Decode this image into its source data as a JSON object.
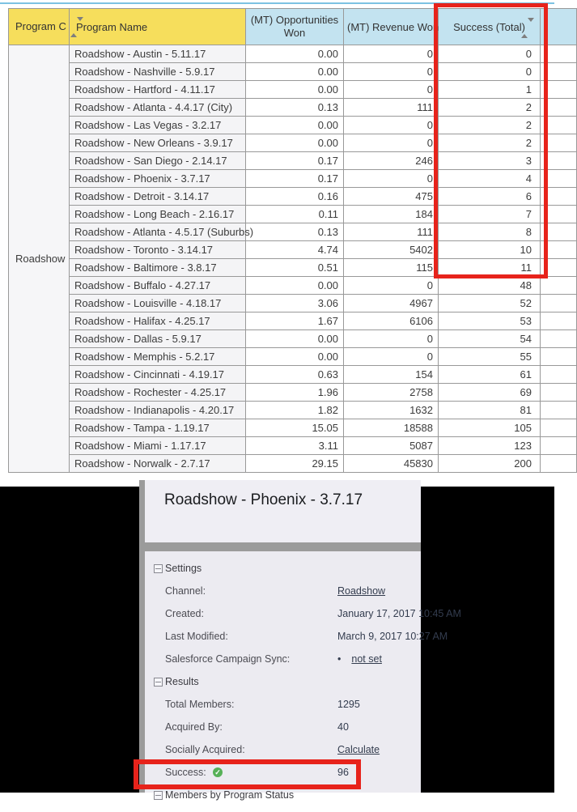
{
  "colors": {
    "highlight_red": "#e7231b",
    "header_yellow": "#f6de5c",
    "header_blue": "#c3e3f0",
    "success_green": "#57b158",
    "top_line_blue": "#7cc2e2"
  },
  "table": {
    "headers": {
      "program_channel": "Program C",
      "program_name": "Program Name",
      "opportunities": "(MT) Opportunities Won",
      "revenue": "(MT) Revenue Won",
      "success": "Success (Total)",
      "partial_column": ""
    },
    "group_label": "Roadshow",
    "rows": [
      {
        "name": "Roadshow - Austin - 5.11.17",
        "opportunities": "0.00",
        "revenue": "0",
        "success": "0"
      },
      {
        "name": "Roadshow - Nashville - 5.9.17",
        "opportunities": "0.00",
        "revenue": "0",
        "success": "0"
      },
      {
        "name": "Roadshow - Hartford - 4.11.17",
        "opportunities": "0.00",
        "revenue": "0",
        "success": "1"
      },
      {
        "name": "Roadshow - Atlanta - 4.4.17 (City)",
        "opportunities": "0.13",
        "revenue": "111",
        "success": "2"
      },
      {
        "name": "Roadshow - Las Vegas - 3.2.17",
        "opportunities": "0.00",
        "revenue": "0",
        "success": "2"
      },
      {
        "name": "Roadshow - New Orleans - 3.9.17",
        "opportunities": "0.00",
        "revenue": "0",
        "success": "2"
      },
      {
        "name": "Roadshow - San Diego - 2.14.17",
        "opportunities": "0.17",
        "revenue": "246",
        "success": "3"
      },
      {
        "name": "Roadshow - Phoenix - 3.7.17",
        "opportunities": "0.17",
        "revenue": "0",
        "success": "4"
      },
      {
        "name": "Roadshow - Detroit - 3.14.17",
        "opportunities": "0.16",
        "revenue": "475",
        "success": "6"
      },
      {
        "name": "Roadshow - Long Beach - 2.16.17",
        "opportunities": "0.11",
        "revenue": "184",
        "success": "7"
      },
      {
        "name": "Roadshow - Atlanta - 4.5.17 (Suburbs)",
        "opportunities": "0.13",
        "revenue": "111",
        "success": "8"
      },
      {
        "name": "Roadshow - Toronto - 3.14.17",
        "opportunities": "4.74",
        "revenue": "5402",
        "success": "10"
      },
      {
        "name": "Roadshow - Baltimore - 3.8.17",
        "opportunities": "0.51",
        "revenue": "115",
        "success": "11"
      },
      {
        "name": "Roadshow - Buffalo - 4.27.17",
        "opportunities": "0.00",
        "revenue": "0",
        "success": "48"
      },
      {
        "name": "Roadshow - Louisville - 4.18.17",
        "opportunities": "3.06",
        "revenue": "4967",
        "success": "52"
      },
      {
        "name": "Roadshow - Halifax - 4.25.17",
        "opportunities": "1.67",
        "revenue": "6106",
        "success": "53"
      },
      {
        "name": "Roadshow - Dallas - 5.9.17",
        "opportunities": "0.00",
        "revenue": "0",
        "success": "54"
      },
      {
        "name": "Roadshow - Memphis - 5.2.17",
        "opportunities": "0.00",
        "revenue": "0",
        "success": "55"
      },
      {
        "name": "Roadshow - Cincinnati - 4.19.17",
        "opportunities": "0.63",
        "revenue": "154",
        "success": "61"
      },
      {
        "name": "Roadshow - Rochester - 4.25.17",
        "opportunities": "1.96",
        "revenue": "2758",
        "success": "69"
      },
      {
        "name": "Roadshow - Indianapolis - 4.20.17",
        "opportunities": "1.82",
        "revenue": "1632",
        "success": "81"
      },
      {
        "name": "Roadshow - Tampa - 1.19.17",
        "opportunities": "15.05",
        "revenue": "18588",
        "success": "105"
      },
      {
        "name": "Roadshow - Miami - 1.17.17",
        "opportunities": "3.11",
        "revenue": "5087",
        "success": "123"
      },
      {
        "name": "Roadshow - Norwalk - 2.7.17",
        "opportunities": "29.15",
        "revenue": "45830",
        "success": "200"
      }
    ]
  },
  "detail_panel": {
    "title": "Roadshow - Phoenix - 3.7.17",
    "sections": [
      {
        "header": "Settings",
        "rows": [
          {
            "label": "Channel:",
            "value": "Roadshow",
            "type": "link"
          },
          {
            "label": "Created:",
            "value": "January 17, 2017 10:45 AM",
            "type": "text"
          },
          {
            "label": "Last Modified:",
            "value": "March 9, 2017 10:27 AM",
            "type": "text"
          },
          {
            "label": "Salesforce Campaign Sync:",
            "value": "not set",
            "type": "bullet-link"
          }
        ]
      },
      {
        "header": "Results",
        "rows": [
          {
            "label": "Total Members:",
            "value": "1295",
            "type": "text"
          },
          {
            "label": "Acquired By:",
            "value": "40",
            "type": "text"
          },
          {
            "label": "Socially Acquired:",
            "value": "Calculate",
            "type": "link"
          },
          {
            "label": "Success:",
            "value": "96",
            "type": "check"
          }
        ]
      }
    ],
    "partial_section_header": "Members by Program Status"
  }
}
